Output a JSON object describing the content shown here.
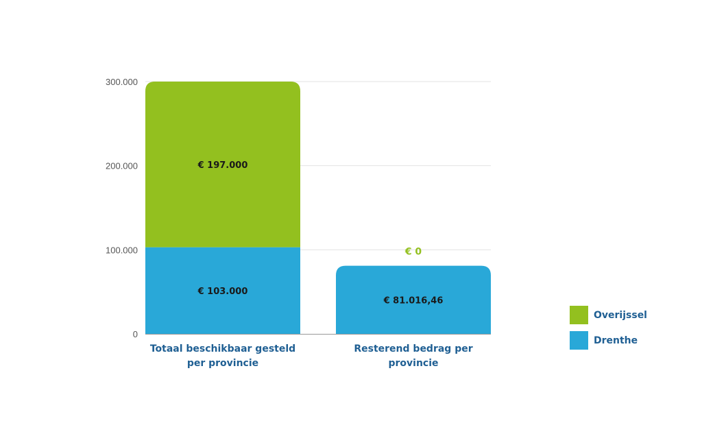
{
  "chart_data": {
    "type": "bar",
    "stacked": true,
    "categories": [
      "Totaal beschikbaar gesteld per provincie",
      "Resterend bedrag per provincie"
    ],
    "category_label_lines": [
      [
        "Totaal beschikbaar gesteld",
        "per provincie"
      ],
      [
        "Resterend bedrag per",
        "provincie"
      ]
    ],
    "series": [
      {
        "name": "Drenthe",
        "color": "#29a8d8",
        "values": [
          103000,
          81016.46
        ],
        "labels": [
          "€ 103.000",
          "€ 81.016,46"
        ]
      },
      {
        "name": "Overijssel",
        "color": "#93c01f",
        "values": [
          197000,
          0
        ],
        "labels": [
          "€ 197.000",
          "€ 0"
        ]
      }
    ],
    "ylim": [
      0,
      300000
    ],
    "yticks": [
      0,
      100000,
      200000,
      300000
    ],
    "ytick_labels": [
      "0",
      "100.000",
      "200.000",
      "300.000"
    ],
    "grid": true,
    "legend": {
      "position": "right",
      "entries": [
        {
          "name": "Overijssel",
          "color": "#93c01f"
        },
        {
          "name": "Drenthe",
          "color": "#29a8d8"
        }
      ]
    },
    "title": "",
    "xlabel": "",
    "ylabel": ""
  }
}
